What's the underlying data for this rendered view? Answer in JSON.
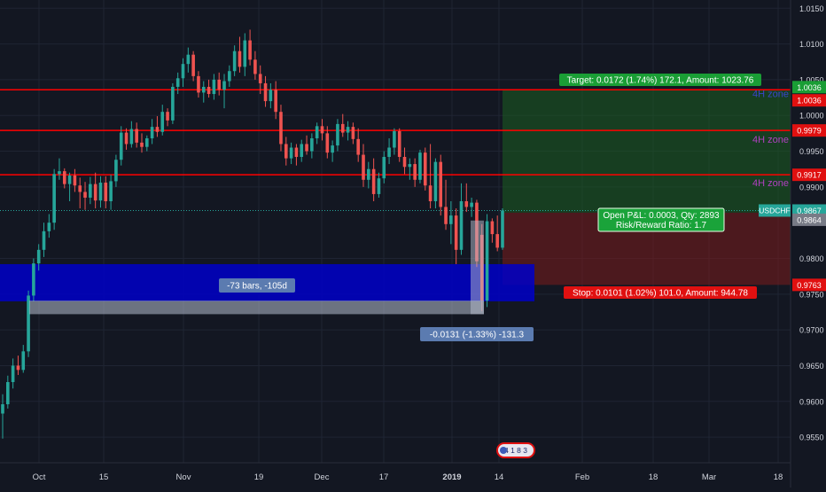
{
  "chart_data": {
    "type": "candlestick",
    "symbol": "USDCHF",
    "last_price": "0.9867",
    "x_ticks": [
      "Oct",
      "15",
      "Nov",
      "19",
      "Dec",
      "17",
      "2019",
      "14",
      "Feb",
      "18",
      "Mar",
      "18"
    ],
    "y_ticks": [
      "1.0150",
      "1.0100",
      "1.0050",
      "1.0000",
      "0.9950",
      "0.9900",
      "0.9800",
      "0.9750",
      "0.9700",
      "0.9650",
      "0.9600",
      "0.9550"
    ],
    "ylim": [
      0.9535,
      1.016
    ],
    "horizontal_levels": [
      {
        "value": 1.0036,
        "label": "1.0036",
        "color": "#ff0000"
      },
      {
        "value": 0.9979,
        "label": "0.9979",
        "color": "#ff0000"
      },
      {
        "value": 0.9917,
        "label": "0.9917",
        "color": "#ff0000"
      }
    ],
    "zone_labels": [
      "4H zone",
      "4H zone",
      "4H zone"
    ],
    "position": {
      "entry": 0.9864,
      "entry_label": "0.9864",
      "target": 1.0036,
      "target_label": "1.0036",
      "stop": 0.9763,
      "stop_label": "0.9763",
      "target_text": "Target: 0.0172 (1.74%) 172.1, Amount: 1023.76",
      "stop_text": "Stop: 0.0101 (1.02%) 101.0, Amount: 944.78",
      "pnl_text": "Open P&L: 0.0003, Qty: 2893",
      "rr_text": "Risk/Reward Ratio: 1.7"
    },
    "demand_zone": {
      "top": 0.9792,
      "bottom": 0.974
    },
    "measure": {
      "bars_text": "-73 bars, -105d",
      "price_text": "-0.0131 (-1.33%) -131.3",
      "from": 0.9853,
      "to": 0.9722
    },
    "event_badge": "4 1 8 3",
    "colors": {
      "up": "#26a69a",
      "down": "#ef5350",
      "bg": "#131722",
      "level": "#ff0000",
      "zone": "#0000c8",
      "target": "#1b5e20",
      "stop": "#7b1c1c",
      "measure": "#b7bfd0",
      "measure_label": "#5b7bb0",
      "zone_text": "#b040c0"
    },
    "candles": [
      {
        "o": 0.9583,
        "h": 0.961,
        "l": 0.9548,
        "c": 0.9596
      },
      {
        "o": 0.9596,
        "h": 0.9636,
        "l": 0.959,
        "c": 0.9627
      },
      {
        "o": 0.9627,
        "h": 0.966,
        "l": 0.9618,
        "c": 0.965
      },
      {
        "o": 0.965,
        "h": 0.9664,
        "l": 0.9637,
        "c": 0.9644
      },
      {
        "o": 0.9644,
        "h": 0.9679,
        "l": 0.964,
        "c": 0.967
      },
      {
        "o": 0.967,
        "h": 0.9755,
        "l": 0.9662,
        "c": 0.9748
      },
      {
        "o": 0.9748,
        "h": 0.98,
        "l": 0.974,
        "c": 0.9793
      },
      {
        "o": 0.9793,
        "h": 0.982,
        "l": 0.9783,
        "c": 0.9812
      },
      {
        "o": 0.9812,
        "h": 0.985,
        "l": 0.9802,
        "c": 0.9838
      },
      {
        "o": 0.9838,
        "h": 0.9862,
        "l": 0.9829,
        "c": 0.985
      },
      {
        "o": 0.985,
        "h": 0.9925,
        "l": 0.984,
        "c": 0.9918
      },
      {
        "o": 0.9918,
        "h": 0.994,
        "l": 0.991,
        "c": 0.9922
      },
      {
        "o": 0.9922,
        "h": 0.9926,
        "l": 0.9898,
        "c": 0.9904
      },
      {
        "o": 0.9904,
        "h": 0.992,
        "l": 0.988,
        "c": 0.9916
      },
      {
        "o": 0.9916,
        "h": 0.9925,
        "l": 0.9893,
        "c": 0.9902
      },
      {
        "o": 0.9902,
        "h": 0.9913,
        "l": 0.987,
        "c": 0.9893
      },
      {
        "o": 0.9893,
        "h": 0.9907,
        "l": 0.9868,
        "c": 0.9885
      },
      {
        "o": 0.9885,
        "h": 0.9914,
        "l": 0.9876,
        "c": 0.9904
      },
      {
        "o": 0.9904,
        "h": 0.992,
        "l": 0.987,
        "c": 0.9881
      },
      {
        "o": 0.9881,
        "h": 0.9915,
        "l": 0.9871,
        "c": 0.9906
      },
      {
        "o": 0.9906,
        "h": 0.9915,
        "l": 0.987,
        "c": 0.988
      },
      {
        "o": 0.988,
        "h": 0.9917,
        "l": 0.9868,
        "c": 0.9908
      },
      {
        "o": 0.9908,
        "h": 0.9945,
        "l": 0.99,
        "c": 0.9938
      },
      {
        "o": 0.9938,
        "h": 0.9985,
        "l": 0.993,
        "c": 0.9976
      },
      {
        "o": 0.9976,
        "h": 0.9982,
        "l": 0.9952,
        "c": 0.996
      },
      {
        "o": 0.996,
        "h": 0.9992,
        "l": 0.9955,
        "c": 0.9981
      },
      {
        "o": 0.9981,
        "h": 0.999,
        "l": 0.9955,
        "c": 0.9962
      },
      {
        "o": 0.9962,
        "h": 0.9975,
        "l": 0.9948,
        "c": 0.9956
      },
      {
        "o": 0.9956,
        "h": 0.9972,
        "l": 0.995,
        "c": 0.9968
      },
      {
        "o": 0.9968,
        "h": 0.9995,
        "l": 0.996,
        "c": 0.9984
      },
      {
        "o": 0.9984,
        "h": 0.9999,
        "l": 0.997,
        "c": 0.9977
      },
      {
        "o": 0.9977,
        "h": 1.0015,
        "l": 0.9972,
        "c": 1.0005
      },
      {
        "o": 1.0005,
        "h": 1.001,
        "l": 0.9985,
        "c": 0.9993
      },
      {
        "o": 0.9993,
        "h": 1.0045,
        "l": 0.9988,
        "c": 1.004
      },
      {
        "o": 1.004,
        "h": 1.006,
        "l": 1.003,
        "c": 1.0052
      },
      {
        "o": 1.0052,
        "h": 1.008,
        "l": 1.004,
        "c": 1.0072
      },
      {
        "o": 1.0072,
        "h": 1.0095,
        "l": 1.006,
        "c": 1.0085
      },
      {
        "o": 1.0085,
        "h": 1.009,
        "l": 1.0048,
        "c": 1.0055
      },
      {
        "o": 1.0055,
        "h": 1.0062,
        "l": 1.0025,
        "c": 1.0032
      },
      {
        "o": 1.0032,
        "h": 1.0048,
        "l": 1.0018,
        "c": 1.004
      },
      {
        "o": 1.004,
        "h": 1.005,
        "l": 1.0025,
        "c": 1.003
      },
      {
        "o": 1.003,
        "h": 1.0058,
        "l": 1.0022,
        "c": 1.005
      },
      {
        "o": 1.005,
        "h": 1.006,
        "l": 1.0028,
        "c": 1.0036
      },
      {
        "o": 1.0036,
        "h": 1.0058,
        "l": 1.001,
        "c": 1.0048
      },
      {
        "o": 1.0048,
        "h": 1.007,
        "l": 1.004,
        "c": 1.0062
      },
      {
        "o": 1.0062,
        "h": 1.0098,
        "l": 1.0055,
        "c": 1.009
      },
      {
        "o": 1.009,
        "h": 1.011,
        "l": 1.006,
        "c": 1.0068
      },
      {
        "o": 1.0068,
        "h": 1.0115,
        "l": 1.0055,
        "c": 1.0105
      },
      {
        "o": 1.0105,
        "h": 1.012,
        "l": 1.007,
        "c": 1.0078
      },
      {
        "o": 1.0078,
        "h": 1.009,
        "l": 1.005,
        "c": 1.0058
      },
      {
        "o": 1.0058,
        "h": 1.007,
        "l": 1.003,
        "c": 1.0045
      },
      {
        "o": 1.0045,
        "h": 1.0055,
        "l": 1.0012,
        "c": 1.002
      },
      {
        "o": 1.002,
        "h": 1.0045,
        "l": 1.001,
        "c": 1.0036
      },
      {
        "o": 1.0036,
        "h": 1.0048,
        "l": 0.9995,
        "c": 1.0005
      },
      {
        "o": 1.0005,
        "h": 1.0015,
        "l": 0.995,
        "c": 0.996
      },
      {
        "o": 0.996,
        "h": 0.997,
        "l": 0.993,
        "c": 0.994
      },
      {
        "o": 0.994,
        "h": 0.9962,
        "l": 0.9932,
        "c": 0.9955
      },
      {
        "o": 0.9955,
        "h": 0.996,
        "l": 0.993,
        "c": 0.9942
      },
      {
        "o": 0.9942,
        "h": 0.9966,
        "l": 0.9935,
        "c": 0.996
      },
      {
        "o": 0.996,
        "h": 0.9972,
        "l": 0.9945,
        "c": 0.995
      },
      {
        "o": 0.995,
        "h": 0.9975,
        "l": 0.994,
        "c": 0.9968
      },
      {
        "o": 0.9968,
        "h": 0.999,
        "l": 0.996,
        "c": 0.9985
      },
      {
        "o": 0.9985,
        "h": 0.9995,
        "l": 0.9965,
        "c": 0.9975
      },
      {
        "o": 0.9975,
        "h": 0.9985,
        "l": 0.994,
        "c": 0.9948
      },
      {
        "o": 0.9948,
        "h": 0.9965,
        "l": 0.9935,
        "c": 0.9958
      },
      {
        "o": 0.9958,
        "h": 0.9995,
        "l": 0.995,
        "c": 0.9988
      },
      {
        "o": 0.9988,
        "h": 1.0002,
        "l": 0.997,
        "c": 0.9976
      },
      {
        "o": 0.9976,
        "h": 0.9992,
        "l": 0.9965,
        "c": 0.9984
      },
      {
        "o": 0.9984,
        "h": 0.999,
        "l": 0.996,
        "c": 0.9967
      },
      {
        "o": 0.9967,
        "h": 0.9982,
        "l": 0.9935,
        "c": 0.9945
      },
      {
        "o": 0.9945,
        "h": 0.996,
        "l": 0.99,
        "c": 0.991
      },
      {
        "o": 0.991,
        "h": 0.9935,
        "l": 0.9898,
        "c": 0.9925
      },
      {
        "o": 0.9925,
        "h": 0.994,
        "l": 0.988,
        "c": 0.989
      },
      {
        "o": 0.989,
        "h": 0.992,
        "l": 0.9885,
        "c": 0.9912
      },
      {
        "o": 0.9912,
        "h": 0.995,
        "l": 0.9905,
        "c": 0.9942
      },
      {
        "o": 0.9942,
        "h": 0.9968,
        "l": 0.9932,
        "c": 0.9955
      },
      {
        "o": 0.9955,
        "h": 0.9982,
        "l": 0.9945,
        "c": 0.9978
      },
      {
        "o": 0.9978,
        "h": 0.9982,
        "l": 0.9935,
        "c": 0.9942
      },
      {
        "o": 0.9942,
        "h": 0.9955,
        "l": 0.9918,
        "c": 0.9928
      },
      {
        "o": 0.9928,
        "h": 0.994,
        "l": 0.991,
        "c": 0.9932
      },
      {
        "o": 0.9932,
        "h": 0.994,
        "l": 0.99,
        "c": 0.991
      },
      {
        "o": 0.991,
        "h": 0.9952,
        "l": 0.9905,
        "c": 0.9948
      },
      {
        "o": 0.9948,
        "h": 0.9955,
        "l": 0.9895,
        "c": 0.9902
      },
      {
        "o": 0.9902,
        "h": 0.996,
        "l": 0.987,
        "c": 0.988
      },
      {
        "o": 0.988,
        "h": 0.994,
        "l": 0.987,
        "c": 0.9935
      },
      {
        "o": 0.9935,
        "h": 0.9945,
        "l": 0.986,
        "c": 0.9872
      },
      {
        "o": 0.9872,
        "h": 0.991,
        "l": 0.984,
        "c": 0.9848
      },
      {
        "o": 0.9848,
        "h": 0.988,
        "l": 0.982,
        "c": 0.986
      },
      {
        "o": 0.986,
        "h": 0.987,
        "l": 0.9792,
        "c": 0.9812
      },
      {
        "o": 0.9812,
        "h": 0.9905,
        "l": 0.9805,
        "c": 0.988
      },
      {
        "o": 0.988,
        "h": 0.9905,
        "l": 0.9865,
        "c": 0.9872
      },
      {
        "o": 0.9872,
        "h": 0.9885,
        "l": 0.9858,
        "c": 0.9878
      },
      {
        "o": 0.9878,
        "h": 0.9882,
        "l": 0.9788,
        "c": 0.9796
      },
      {
        "o": 0.9833,
        "h": 0.9848,
        "l": 0.9726,
        "c": 0.9741
      },
      {
        "o": 0.9741,
        "h": 0.9862,
        "l": 0.9732,
        "c": 0.9852
      },
      {
        "o": 0.9852,
        "h": 0.9856,
        "l": 0.9822,
        "c": 0.9834
      },
      {
        "o": 0.9834,
        "h": 0.986,
        "l": 0.981,
        "c": 0.9815
      },
      {
        "o": 0.9815,
        "h": 0.987,
        "l": 0.9812,
        "c": 0.9867
      }
    ]
  }
}
